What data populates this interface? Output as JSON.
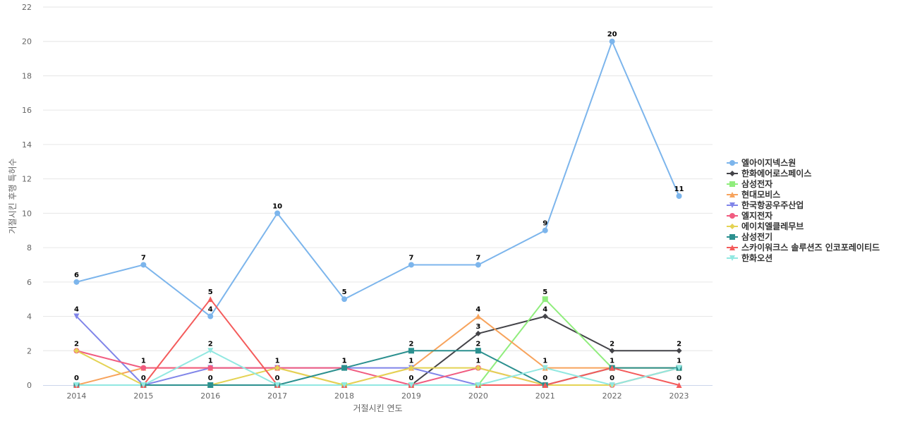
{
  "chart_data": {
    "type": "line",
    "xlabel": "거절시킨 연도",
    "ylabel": "거절시킨 후행 특허수",
    "ylim": [
      0,
      22
    ],
    "yticks": [
      0,
      2,
      4,
      6,
      8,
      10,
      12,
      14,
      16,
      18,
      20,
      22
    ],
    "grid": true,
    "legend_position": "right",
    "categories": [
      "2014",
      "2015",
      "2016",
      "2017",
      "2018",
      "2019",
      "2020",
      "2021",
      "2022",
      "2023"
    ],
    "series": [
      {
        "name": "엘아이지넥스원",
        "color": "#7cb5ec",
        "marker": "circle",
        "values": [
          6,
          7,
          4,
          10,
          5,
          7,
          7,
          9,
          20,
          11
        ],
        "labeled": [
          true,
          true,
          true,
          true,
          true,
          true,
          true,
          true,
          true,
          true
        ]
      },
      {
        "name": "한화에어로스페이스",
        "color": "#434348",
        "marker": "diamond",
        "values": [
          0,
          0,
          0,
          0,
          0,
          0,
          3,
          4,
          2,
          2
        ],
        "labeled": [
          false,
          false,
          false,
          false,
          false,
          false,
          true,
          true,
          true,
          true
        ]
      },
      {
        "name": "삼성전자",
        "color": "#90ed7d",
        "marker": "square",
        "values": [
          0,
          0,
          0,
          0,
          0,
          0,
          0,
          5,
          1,
          1
        ],
        "labeled": [
          false,
          false,
          false,
          false,
          false,
          false,
          false,
          true,
          false,
          false
        ]
      },
      {
        "name": "현대모비스",
        "color": "#f7a35c",
        "marker": "triangle",
        "values": [
          0,
          1,
          1,
          1,
          0,
          1,
          4,
          1,
          1,
          1
        ],
        "labeled": [
          false,
          false,
          false,
          false,
          false,
          false,
          true,
          false,
          false,
          false
        ]
      },
      {
        "name": "한국항공우주산업",
        "color": "#8085e9",
        "marker": "triangle-down",
        "values": [
          4,
          0,
          1,
          1,
          1,
          1,
          0,
          0,
          0,
          1
        ],
        "labeled": [
          true,
          false,
          false,
          false,
          false,
          false,
          false,
          false,
          false,
          false
        ]
      },
      {
        "name": "엘지전자",
        "color": "#f15c80",
        "marker": "circle",
        "values": [
          2,
          1,
          1,
          1,
          1,
          0,
          1,
          0,
          0,
          1
        ],
        "labeled": [
          true,
          true,
          true,
          true,
          true,
          true,
          true,
          false,
          false,
          false
        ]
      },
      {
        "name": "에이치엘클레무브",
        "color": "#e4d354",
        "marker": "diamond",
        "values": [
          2,
          0,
          0,
          1,
          0,
          1,
          1,
          0,
          0,
          1
        ],
        "labeled": [
          false,
          false,
          false,
          false,
          false,
          true,
          false,
          false,
          false,
          false
        ]
      },
      {
        "name": "삼성전기",
        "color": "#2b908f",
        "marker": "square",
        "values": [
          0,
          0,
          0,
          0,
          1,
          2,
          2,
          0,
          1,
          1
        ],
        "labeled": [
          true,
          true,
          true,
          true,
          true,
          true,
          true,
          true,
          true,
          true
        ]
      },
      {
        "name": "스카이워크스 솔루션즈 인코포레이티드",
        "color": "#f45b5b",
        "marker": "triangle",
        "values": [
          0,
          0,
          5,
          0,
          0,
          0,
          0,
          0,
          1,
          0
        ],
        "labeled": [
          false,
          false,
          true,
          false,
          false,
          false,
          false,
          false,
          false,
          true
        ]
      },
      {
        "name": "한화오션",
        "color": "#91e8e1",
        "marker": "triangle-down",
        "values": [
          0,
          0,
          2,
          0,
          0,
          0,
          0,
          1,
          0,
          1
        ],
        "labeled": [
          false,
          false,
          true,
          false,
          false,
          false,
          false,
          true,
          true,
          false
        ]
      }
    ]
  }
}
